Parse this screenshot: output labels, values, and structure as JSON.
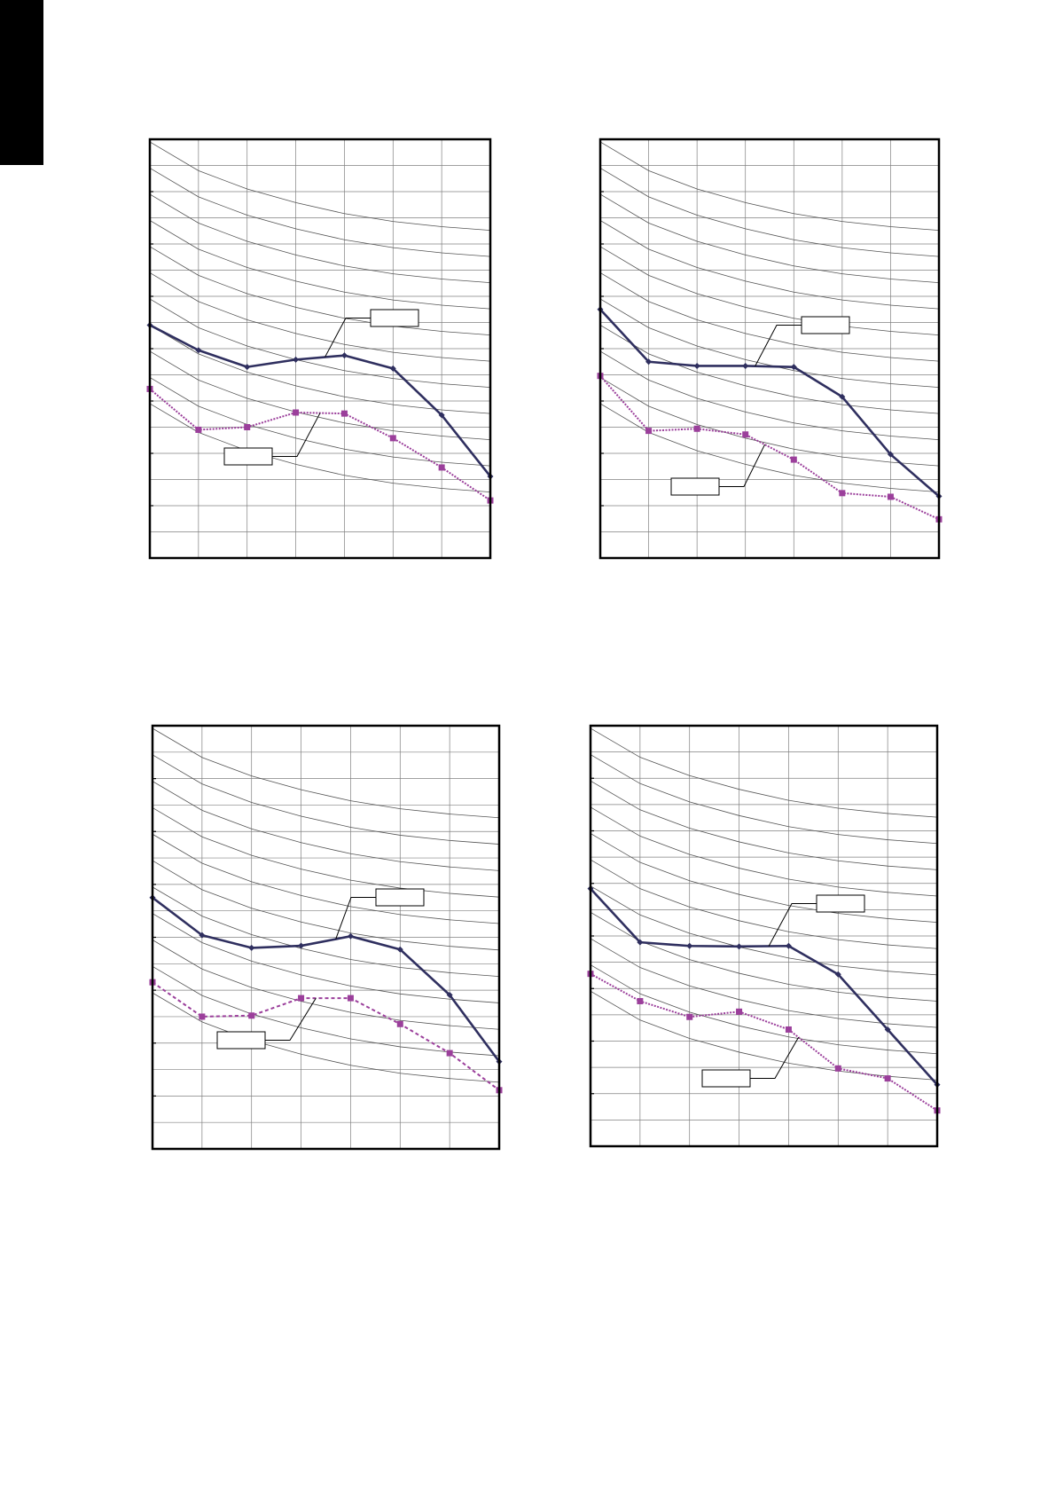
{
  "page": {
    "side_tab_color": "#000000"
  },
  "colors": {
    "frame": "#000000",
    "grid": "#808080",
    "nc_curve": "#555555",
    "series_a": "#2f2f5f",
    "series_b": "#9b3f9b",
    "label_box": "#000000"
  },
  "chart_data": [
    {
      "type": "line",
      "grid": true,
      "legend": "none",
      "x": [
        0,
        1,
        2,
        3,
        4,
        5,
        6,
        7
      ],
      "xlim": [
        0,
        7
      ],
      "ylim": [
        0,
        80
      ],
      "series": [
        {
          "style": "solid",
          "marker": "diamond",
          "values": [
            44.5,
            39.7,
            36.5,
            37.9,
            38.7,
            36.2,
            27.3,
            15.6
          ]
        },
        {
          "style": "dotted",
          "marker": "square",
          "values": [
            32.3,
            24.5,
            25.0,
            27.8,
            27.6,
            22.9,
            17.3,
            11.0
          ]
        }
      ],
      "nc_curves": [
        [
          79.5,
          74.0,
          70.5,
          67.9,
          65.8,
          64.3,
          63.3,
          62.6
        ],
        [
          74.5,
          69.0,
          65.5,
          62.9,
          60.8,
          59.3,
          58.3,
          57.6
        ],
        [
          69.5,
          64.0,
          60.5,
          57.9,
          55.8,
          54.3,
          53.3,
          52.6
        ],
        [
          64.5,
          59.0,
          55.5,
          52.9,
          50.8,
          49.3,
          48.3,
          47.6
        ],
        [
          59.5,
          54.0,
          50.5,
          47.9,
          45.8,
          44.3,
          43.3,
          42.6
        ],
        [
          54.5,
          49.0,
          45.5,
          42.9,
          40.8,
          39.3,
          38.3,
          37.6
        ],
        [
          49.5,
          44.0,
          40.5,
          37.9,
          35.8,
          34.3,
          33.3,
          32.6
        ],
        [
          44.5,
          39.0,
          35.5,
          32.9,
          30.8,
          29.3,
          28.3,
          27.6
        ],
        [
          39.5,
          34.0,
          30.5,
          27.9,
          25.8,
          24.3,
          23.3,
          22.6
        ],
        [
          34.5,
          29.0,
          25.5,
          22.9,
          20.8,
          19.3,
          18.3,
          17.6
        ],
        [
          29.5,
          24.0,
          20.5,
          17.9,
          15.8,
          14.3,
          13.3,
          12.6
        ]
      ],
      "callouts": [
        {
          "series": 0,
          "text": "",
          "at_point": 3.6
        },
        {
          "series": 1,
          "text": "",
          "at_point": 3.5
        }
      ]
    },
    {
      "type": "line",
      "grid": true,
      "legend": "none",
      "x": [
        0,
        1,
        2,
        3,
        4,
        5,
        6,
        7
      ],
      "xlim": [
        0,
        7
      ],
      "ylim": [
        0,
        80
      ],
      "series": [
        {
          "style": "solid",
          "marker": "diamond",
          "values": [
            47.5,
            37.5,
            36.7,
            36.7,
            36.5,
            30.8,
            19.8,
            11.8
          ]
        },
        {
          "style": "dotted",
          "marker": "square",
          "values": [
            34.8,
            24.3,
            24.7,
            23.6,
            18.8,
            12.4,
            11.7,
            7.4
          ]
        }
      ],
      "nc_curves": [
        [
          79.5,
          74.0,
          70.5,
          67.9,
          65.8,
          64.3,
          63.3,
          62.6
        ],
        [
          74.5,
          69.0,
          65.5,
          62.9,
          60.8,
          59.3,
          58.3,
          57.6
        ],
        [
          69.5,
          64.0,
          60.5,
          57.9,
          55.8,
          54.3,
          53.3,
          52.6
        ],
        [
          64.5,
          59.0,
          55.5,
          52.9,
          50.8,
          49.3,
          48.3,
          47.6
        ],
        [
          59.5,
          54.0,
          50.5,
          47.9,
          45.8,
          44.3,
          43.3,
          42.6
        ],
        [
          54.5,
          49.0,
          45.5,
          42.9,
          40.8,
          39.3,
          38.3,
          37.6
        ],
        [
          49.5,
          44.0,
          40.5,
          37.9,
          35.8,
          34.3,
          33.3,
          32.6
        ],
        [
          44.5,
          39.0,
          35.5,
          32.9,
          30.8,
          29.3,
          28.3,
          27.6
        ],
        [
          39.5,
          34.0,
          30.5,
          27.9,
          25.8,
          24.3,
          23.3,
          22.6
        ],
        [
          34.5,
          29.0,
          25.5,
          22.9,
          20.8,
          19.3,
          18.3,
          17.6
        ],
        [
          29.5,
          24.0,
          20.5,
          17.9,
          15.8,
          14.3,
          13.3,
          12.6
        ]
      ],
      "callouts": [
        {
          "series": 0,
          "text": "",
          "at_point": 3.2
        },
        {
          "series": 1,
          "text": "",
          "at_point": 3.4
        }
      ]
    },
    {
      "type": "line",
      "grid": true,
      "legend": "none",
      "x": [
        0,
        1,
        2,
        3,
        4,
        5,
        6,
        7
      ],
      "xlim": [
        0,
        7
      ],
      "ylim": [
        0,
        80
      ],
      "series": [
        {
          "style": "solid",
          "marker": "diamond",
          "values": [
            47.5,
            40.4,
            38.0,
            38.4,
            40.2,
            37.7,
            29.1,
            16.5
          ]
        },
        {
          "style": "dashed",
          "marker": "square",
          "values": [
            31.5,
            25.0,
            25.2,
            28.5,
            28.5,
            23.6,
            18.1,
            11.1
          ]
        }
      ],
      "nc_curves": [
        [
          79.5,
          74.0,
          70.5,
          67.9,
          65.8,
          64.3,
          63.3,
          62.6
        ],
        [
          74.5,
          69.0,
          65.5,
          62.9,
          60.8,
          59.3,
          58.3,
          57.6
        ],
        [
          69.5,
          64.0,
          60.5,
          57.9,
          55.8,
          54.3,
          53.3,
          52.6
        ],
        [
          64.5,
          59.0,
          55.5,
          52.9,
          50.8,
          49.3,
          48.3,
          47.6
        ],
        [
          59.5,
          54.0,
          50.5,
          47.9,
          45.8,
          44.3,
          43.3,
          42.6
        ],
        [
          54.5,
          49.0,
          45.5,
          42.9,
          40.8,
          39.3,
          38.3,
          37.6
        ],
        [
          49.5,
          44.0,
          40.5,
          37.9,
          35.8,
          34.3,
          33.3,
          32.6
        ],
        [
          44.5,
          39.0,
          35.5,
          32.9,
          30.8,
          29.3,
          28.3,
          27.6
        ],
        [
          39.5,
          34.0,
          30.5,
          27.9,
          25.8,
          24.3,
          23.3,
          22.6
        ],
        [
          34.5,
          29.0,
          25.5,
          22.9,
          20.8,
          19.3,
          18.3,
          17.6
        ],
        [
          29.5,
          24.0,
          20.5,
          17.9,
          15.8,
          14.3,
          13.3,
          12.6
        ]
      ],
      "callouts": [
        {
          "series": 0,
          "text": "",
          "at_point": 3.7
        },
        {
          "series": 1,
          "text": "",
          "at_point": 3.3
        }
      ]
    },
    {
      "type": "line",
      "grid": true,
      "legend": "none",
      "x": [
        0,
        1,
        2,
        3,
        4,
        5,
        6,
        7
      ],
      "xlim": [
        0,
        7
      ],
      "ylim": [
        0,
        80
      ],
      "series": [
        {
          "style": "solid",
          "marker": "diamond",
          "values": [
            49.0,
            38.8,
            38.1,
            38.0,
            38.1,
            32.7,
            22.2,
            11.7
          ]
        },
        {
          "style": "dotted",
          "marker": "square",
          "values": [
            32.8,
            27.6,
            24.6,
            25.6,
            22.2,
            14.8,
            12.9,
            6.8
          ]
        }
      ],
      "nc_curves": [
        [
          79.5,
          74.0,
          70.5,
          67.9,
          65.8,
          64.3,
          63.3,
          62.6
        ],
        [
          74.5,
          69.0,
          65.5,
          62.9,
          60.8,
          59.3,
          58.3,
          57.6
        ],
        [
          69.5,
          64.0,
          60.5,
          57.9,
          55.8,
          54.3,
          53.3,
          52.6
        ],
        [
          64.5,
          59.0,
          55.5,
          52.9,
          50.8,
          49.3,
          48.3,
          47.6
        ],
        [
          59.5,
          54.0,
          50.5,
          47.9,
          45.8,
          44.3,
          43.3,
          42.6
        ],
        [
          54.5,
          49.0,
          45.5,
          42.9,
          40.8,
          39.3,
          38.3,
          37.6
        ],
        [
          49.5,
          44.0,
          40.5,
          37.9,
          35.8,
          34.3,
          33.3,
          32.6
        ],
        [
          44.5,
          39.0,
          35.5,
          32.9,
          30.8,
          29.3,
          28.3,
          27.6
        ],
        [
          39.5,
          34.0,
          30.5,
          27.9,
          25.8,
          24.3,
          23.3,
          22.6
        ],
        [
          34.5,
          29.0,
          25.5,
          22.9,
          20.8,
          19.3,
          18.3,
          17.6
        ],
        [
          29.5,
          24.0,
          20.5,
          17.9,
          15.8,
          14.3,
          13.3,
          12.6
        ]
      ],
      "callouts": [
        {
          "series": 0,
          "text": "",
          "at_point": 3.6
        },
        {
          "series": 1,
          "text": "",
          "at_point": 4.2
        }
      ]
    }
  ]
}
